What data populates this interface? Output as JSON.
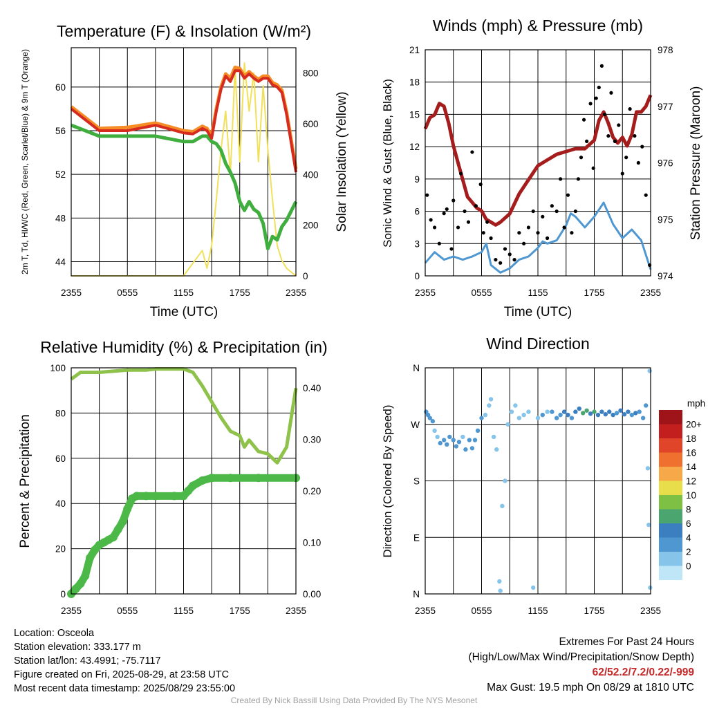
{
  "panels": {
    "temperature": {
      "title": "Temperature (F) & Insolation (W/m²)",
      "ylabel_left": "2m T, Td, HI/WC (Red, Green, Scarlet/Blue) & 9m T (Orange)",
      "ylabel_right": "Solar Insolation (Yellow)",
      "xlabel": "Time (UTC)"
    },
    "winds": {
      "title": "Winds (mph) & Pressure (mb)",
      "ylabel_left": "Sonic Wind & Gust (Blue, Black)",
      "ylabel_right": "Station Pressure (Maroon)",
      "xlabel": "Time (UTC)"
    },
    "humidity": {
      "title": "Relative Humidity (%) & Precipitation (in)",
      "ylabel_left": "Percent & Precipitation"
    },
    "direction": {
      "title": "Wind Direction",
      "ylabel_left": "Direction (Colored By Speed)",
      "legend_title": "mph",
      "legend_labels": [
        "20+",
        "18",
        "16",
        "14",
        "12",
        "10",
        "8",
        "6",
        "4",
        "2",
        "0"
      ]
    }
  },
  "colors": {
    "temp": "#d62b1f",
    "dewpoint": "#3fae3f",
    "temp9m": "#f58c26",
    "solar": "#f1e05a",
    "wind": "#4f97d1",
    "gust": "#000000",
    "pressure": "#a51c1c",
    "rh": "#8fc24a",
    "precip": "#4cb848",
    "speed_scale": [
      "#bfe6f7",
      "#86c4ea",
      "#4f97d1",
      "#3b7fc0",
      "#4aa66e",
      "#7ec044",
      "#e8dd4a",
      "#f7a94a",
      "#f0702f",
      "#e0452a",
      "#c41f1f",
      "#9e1418"
    ]
  },
  "info": {
    "location": "Location: Osceola",
    "elevation": "Station elevation: 333.177 m",
    "latlon": "Station lat/lon: 43.4991; -75.7117",
    "created": "Figure created on Fri, 2025-08-29, at 23:58 UTC",
    "recent": "Most recent data timestamp: 2025/08/29 23:55:00"
  },
  "extremes": {
    "heading": "Extremes For Past 24 Hours",
    "subheading": "(High/Low/Max Wind/Precipitation/Snow Depth)",
    "values": "62/52.2/7.2/0.22/-999",
    "max_gust": "Max Gust: 19.5 mph On 08/29 at 1810 UTC"
  },
  "credit": "Created By Nick Bassill Using Data Provided By The NYS Mesonet",
  "chart_data": [
    {
      "type": "line",
      "title": "Temperature (F) & Insolation (W/m²)",
      "xlabel": "Time (UTC)",
      "xticks": [
        "2355",
        "0555",
        "1155",
        "1755",
        "2355"
      ],
      "x_hours": [
        0,
        3,
        6,
        9,
        12,
        13,
        14,
        14.5,
        15,
        15.5,
        16,
        16.5,
        17,
        17.5,
        18,
        18.5,
        19,
        19.5,
        20,
        20.5,
        21,
        21.5,
        22,
        22.5,
        23,
        24
      ],
      "ylim_left": [
        42.7,
        63.6
      ],
      "yticks_left": [
        44,
        48,
        52,
        56,
        60
      ],
      "ylim_right": [
        0,
        900
      ],
      "yticks_right": [
        0,
        200,
        400,
        600,
        800
      ],
      "series": [
        {
          "name": "2m T",
          "axis": "left",
          "color": "#d62b1f",
          "values": [
            58.0,
            56.0,
            56.0,
            56.5,
            55.8,
            55.7,
            56.2,
            56.0,
            55.3,
            57.8,
            59.8,
            61.0,
            60.5,
            61.5,
            61.5,
            60.8,
            61.2,
            60.8,
            60.5,
            60.8,
            60.8,
            60.2,
            60.0,
            59.5,
            57.5,
            52.2
          ]
        },
        {
          "name": "9m T",
          "axis": "left",
          "color": "#f58c26",
          "values": [
            58.2,
            56.2,
            56.3,
            56.7,
            56.0,
            55.9,
            56.4,
            56.2,
            55.5,
            58.0,
            60.0,
            61.2,
            60.8,
            61.8,
            61.7,
            61.0,
            61.4,
            61.0,
            60.7,
            61.0,
            61.0,
            60.4,
            60.2,
            59.7,
            57.7,
            52.5
          ]
        },
        {
          "name": "Td",
          "axis": "left",
          "color": "#3fae3f",
          "values": [
            56.5,
            55.5,
            55.5,
            55.5,
            55.0,
            55.0,
            55.5,
            55.5,
            55.0,
            54.8,
            54.2,
            53.0,
            52.2,
            51.2,
            49.5,
            48.7,
            49.5,
            48.8,
            48.5,
            47.5,
            45.2,
            46.3,
            46.0,
            47.2,
            47.8,
            49.5
          ]
        },
        {
          "name": "Solar",
          "axis": "right",
          "color": "#f1e05a",
          "values": [
            0,
            0,
            0,
            0,
            0,
            50,
            100,
            30,
            120,
            300,
            500,
            650,
            400,
            820,
            450,
            840,
            650,
            800,
            450,
            750,
            500,
            300,
            120,
            60,
            30,
            0
          ]
        }
      ]
    },
    {
      "type": "line",
      "title": "Winds (mph) & Pressure (mb)",
      "xlabel": "Time (UTC)",
      "xticks": [
        "2355",
        "0555",
        "1155",
        "1755",
        "2355"
      ],
      "ylim_left": [
        0,
        21
      ],
      "yticks_left": [
        0,
        3,
        6,
        9,
        12,
        15,
        18,
        21
      ],
      "ylim_right": [
        974,
        978
      ],
      "yticks_right": [
        974,
        975,
        976,
        977,
        978
      ],
      "series": [
        {
          "name": "Sonic Wind",
          "axis": "left",
          "color": "#4f97d1",
          "x_hours": [
            0,
            1,
            2,
            3,
            4,
            5,
            6,
            6.5,
            7,
            8,
            9,
            10,
            11,
            12,
            12.5,
            13,
            14,
            15,
            15.5,
            16,
            17,
            18,
            19,
            20,
            21,
            22,
            23,
            24
          ],
          "values": [
            1.2,
            2.2,
            1.5,
            1.8,
            1.5,
            1.8,
            2.2,
            3.0,
            1.0,
            0.3,
            0.7,
            1.5,
            1.8,
            2.6,
            3.2,
            3.0,
            3.3,
            4.7,
            5.8,
            5.5,
            4.5,
            5.5,
            6.8,
            4.8,
            3.5,
            4.3,
            3.3,
            0.6
          ]
        },
        {
          "name": "Gust",
          "axis": "left",
          "color": "#000000",
          "x_hours": [
            0.2,
            0.6,
            1.0,
            1.5,
            2.0,
            2.3,
            2.8,
            3.0,
            3.5,
            3.8,
            4.2,
            4.6,
            5.0,
            5.4,
            5.9,
            6.2,
            6.6,
            7.0,
            7.5,
            8.0,
            8.5,
            9.0,
            9.5,
            10.0,
            10.5,
            11.0,
            11.5,
            12.0,
            12.5,
            13.0,
            13.5,
            14.0,
            14.4,
            14.8,
            15.2,
            15.6,
            16.0,
            16.3,
            16.6,
            16.9,
            17.2,
            17.6,
            17.9,
            18.2,
            18.5,
            18.8,
            19.1,
            19.5,
            19.8,
            20.2,
            20.6,
            21.0,
            21.4,
            21.8,
            22.3,
            22.7,
            23.1,
            23.5,
            23.9
          ],
          "values": [
            7.5,
            5.2,
            4.5,
            3.0,
            5.8,
            6.2,
            2.5,
            7.0,
            4.5,
            9.5,
            6.0,
            5.0,
            11.5,
            6.5,
            8.5,
            4.0,
            5.0,
            3.5,
            1.5,
            1.2,
            2.5,
            2.0,
            1.5,
            4.0,
            3.0,
            4.5,
            6.0,
            4.0,
            5.5,
            3.5,
            6.5,
            6.0,
            9.0,
            4.5,
            7.5,
            4.0,
            6.0,
            9.0,
            11.0,
            14.5,
            12.5,
            16.0,
            10.0,
            16.5,
            17.5,
            19.5,
            15.0,
            13.0,
            17.0,
            12.5,
            14.0,
            9.5,
            11.0,
            15.5,
            13.0,
            10.5,
            12.0,
            7.5,
            1.0
          ]
        },
        {
          "name": "Pressure",
          "axis": "right",
          "color": "#a51c1c",
          "x_hours": [
            0,
            0.5,
            1.0,
            1.5,
            2.0,
            2.5,
            3.0,
            3.5,
            4.0,
            4.5,
            5.0,
            5.5,
            6.0,
            6.5,
            7.0,
            7.5,
            8.0,
            9.0,
            10.0,
            11.0,
            12.0,
            13.0,
            14.0,
            15.0,
            16.0,
            17.0,
            18.0,
            18.5,
            19.0,
            19.5,
            20.0,
            20.5,
            21.0,
            21.5,
            22.0,
            22.5,
            23.0,
            23.5,
            24.0
          ],
          "values": [
            976.6,
            976.8,
            976.85,
            977.05,
            977.0,
            976.7,
            976.3,
            976.0,
            975.7,
            975.4,
            975.3,
            975.2,
            975.15,
            975.0,
            974.95,
            974.9,
            974.95,
            975.1,
            975.45,
            975.7,
            975.95,
            976.05,
            976.15,
            976.2,
            976.25,
            976.25,
            976.4,
            976.75,
            976.9,
            976.7,
            976.45,
            976.35,
            976.45,
            976.3,
            976.5,
            976.9,
            976.9,
            977.0,
            977.2
          ]
        }
      ]
    },
    {
      "type": "line",
      "title": "Relative Humidity (%) & Precipitation (in)",
      "xticks": [
        "2355",
        "0555",
        "1155",
        "1755",
        "2355"
      ],
      "ylim_left": [
        0,
        100
      ],
      "yticks_left": [
        0,
        20,
        40,
        60,
        80,
        100
      ],
      "ylim_right": [
        0,
        0.4387
      ],
      "yticks_right": [
        0.0,
        0.1,
        0.2,
        0.3,
        0.4
      ],
      "yticks_right_labels": [
        "0.00",
        "0.10",
        "0.20",
        "0.30",
        "0.40"
      ],
      "series": [
        {
          "name": "RH",
          "axis": "left",
          "color": "#8fc24a",
          "x_hours": [
            0,
            1,
            3,
            6,
            8,
            9,
            10,
            12,
            13,
            14,
            15,
            16,
            17,
            18,
            18.5,
            19,
            20,
            21,
            22,
            23,
            24
          ],
          "values": [
            95,
            98,
            98,
            99,
            99,
            99.5,
            99.5,
            99.5,
            98,
            92,
            85,
            78,
            72,
            70,
            65,
            68,
            63,
            62,
            58,
            65,
            91
          ]
        },
        {
          "name": "Precipitation",
          "axis": "right",
          "color": "#4cb848",
          "x_hours": [
            0,
            0.5,
            1.0,
            1.5,
            2.0,
            2.5,
            3.0,
            3.5,
            4.0,
            4.5,
            5.0,
            5.5,
            6.0,
            6.5,
            7.0,
            8.0,
            9.0,
            11.0,
            12.0,
            12.5,
            13.0,
            14.0,
            15.0,
            17.0,
            20.0,
            24.0
          ],
          "values": [
            0.0,
            0.01,
            0.02,
            0.035,
            0.07,
            0.085,
            0.095,
            0.1,
            0.105,
            0.11,
            0.125,
            0.14,
            0.165,
            0.185,
            0.19,
            0.19,
            0.19,
            0.19,
            0.19,
            0.2,
            0.21,
            0.22,
            0.225,
            0.225,
            0.225,
            0.225
          ]
        }
      ]
    },
    {
      "type": "scatter",
      "title": "Wind Direction",
      "xticks": [
        "2355",
        "0555",
        "1155",
        "1755",
        "2355"
      ],
      "ylim": [
        0,
        360
      ],
      "yticks": [
        0,
        90,
        180,
        270,
        360
      ],
      "ytick_labels": [
        "N",
        "E",
        "S",
        "W",
        "N"
      ],
      "points": [
        {
          "x": 0.1,
          "dir": 290,
          "spd": 2
        },
        {
          "x": 0.3,
          "dir": 285,
          "spd": 3
        },
        {
          "x": 0.5,
          "dir": 280,
          "spd": 3
        },
        {
          "x": 0.8,
          "dir": 275,
          "spd": 2
        },
        {
          "x": 1.0,
          "dir": 260,
          "spd": 1
        },
        {
          "x": 1.3,
          "dir": 250,
          "spd": 1
        },
        {
          "x": 1.6,
          "dir": 240,
          "spd": 2
        },
        {
          "x": 2.0,
          "dir": 245,
          "spd": 2
        },
        {
          "x": 2.3,
          "dir": 238,
          "spd": 3
        },
        {
          "x": 2.6,
          "dir": 250,
          "spd": 2
        },
        {
          "x": 3.0,
          "dir": 245,
          "spd": 3
        },
        {
          "x": 3.3,
          "dir": 235,
          "spd": 2
        },
        {
          "x": 3.6,
          "dir": 242,
          "spd": 3
        },
        {
          "x": 4.0,
          "dir": 250,
          "spd": 1
        },
        {
          "x": 4.3,
          "dir": 230,
          "spd": 3
        },
        {
          "x": 4.7,
          "dir": 245,
          "spd": 2
        },
        {
          "x": 5.0,
          "dir": 232,
          "spd": 2
        },
        {
          "x": 5.3,
          "dir": 245,
          "spd": 3
        },
        {
          "x": 5.6,
          "dir": 260,
          "spd": 3
        },
        {
          "x": 6.0,
          "dir": 280,
          "spd": 2
        },
        {
          "x": 6.4,
          "dir": 285,
          "spd": 1
        },
        {
          "x": 6.8,
          "dir": 300,
          "spd": 1
        },
        {
          "x": 7.0,
          "dir": 310,
          "spd": 1
        },
        {
          "x": 7.3,
          "dir": 250,
          "spd": 1
        },
        {
          "x": 7.6,
          "dir": 230,
          "spd": 1
        },
        {
          "x": 7.9,
          "dir": 20,
          "spd": 1
        },
        {
          "x": 8.0,
          "dir": 5,
          "spd": 1
        },
        {
          "x": 8.2,
          "dir": 140,
          "spd": 1
        },
        {
          "x": 8.5,
          "dir": 180,
          "spd": 1
        },
        {
          "x": 8.8,
          "dir": 270,
          "spd": 1
        },
        {
          "x": 9.2,
          "dir": 290,
          "spd": 1
        },
        {
          "x": 9.6,
          "dir": 300,
          "spd": 1
        },
        {
          "x": 10.0,
          "dir": 280,
          "spd": 1
        },
        {
          "x": 10.5,
          "dir": 285,
          "spd": 1
        },
        {
          "x": 11.0,
          "dir": 290,
          "spd": 1
        },
        {
          "x": 11.5,
          "dir": 10,
          "spd": 1
        },
        {
          "x": 12.0,
          "dir": 280,
          "spd": 1
        },
        {
          "x": 12.5,
          "dir": 285,
          "spd": 2
        },
        {
          "x": 13.0,
          "dir": 290,
          "spd": 1
        },
        {
          "x": 13.5,
          "dir": 290,
          "spd": 2
        },
        {
          "x": 14.0,
          "dir": 280,
          "spd": 3
        },
        {
          "x": 14.4,
          "dir": 285,
          "spd": 2
        },
        {
          "x": 14.8,
          "dir": 290,
          "spd": 4
        },
        {
          "x": 15.2,
          "dir": 285,
          "spd": 4
        },
        {
          "x": 15.6,
          "dir": 280,
          "spd": 3
        },
        {
          "x": 16.0,
          "dir": 290,
          "spd": 4
        },
        {
          "x": 16.4,
          "dir": 295,
          "spd": 5
        },
        {
          "x": 16.8,
          "dir": 288,
          "spd": 6
        },
        {
          "x": 17.2,
          "dir": 292,
          "spd": 6
        },
        {
          "x": 17.6,
          "dir": 287,
          "spd": 5
        },
        {
          "x": 18.0,
          "dir": 290,
          "spd": 6
        },
        {
          "x": 18.4,
          "dir": 285,
          "spd": 5
        },
        {
          "x": 18.8,
          "dir": 290,
          "spd": 4
        },
        {
          "x": 19.2,
          "dir": 286,
          "spd": 4
        },
        {
          "x": 19.6,
          "dir": 290,
          "spd": 4
        },
        {
          "x": 20.0,
          "dir": 285,
          "spd": 4
        },
        {
          "x": 20.4,
          "dir": 288,
          "spd": 3
        },
        {
          "x": 20.8,
          "dir": 292,
          "spd": 4
        },
        {
          "x": 21.2,
          "dir": 286,
          "spd": 4
        },
        {
          "x": 21.6,
          "dir": 290,
          "spd": 4
        },
        {
          "x": 22.0,
          "dir": 285,
          "spd": 3
        },
        {
          "x": 22.4,
          "dir": 288,
          "spd": 4
        },
        {
          "x": 22.8,
          "dir": 290,
          "spd": 3
        },
        {
          "x": 23.2,
          "dir": 280,
          "spd": 2
        },
        {
          "x": 23.5,
          "dir": 300,
          "spd": 3
        },
        {
          "x": 23.7,
          "dir": 200,
          "spd": 1
        },
        {
          "x": 23.8,
          "dir": 110,
          "spd": 1
        },
        {
          "x": 23.9,
          "dir": 355,
          "spd": 1
        },
        {
          "x": 23.95,
          "dir": 10,
          "spd": 1
        }
      ]
    }
  ]
}
